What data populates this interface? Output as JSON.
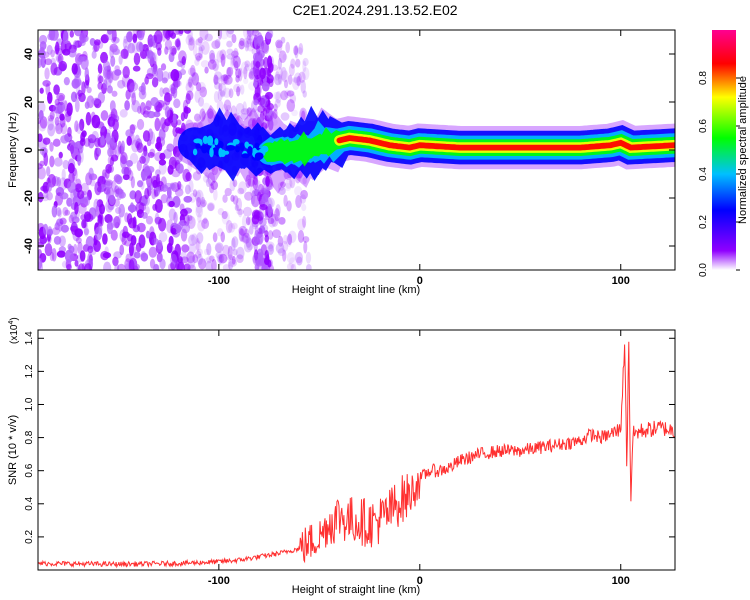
{
  "title": "C2E1.2024.291.13.52.E02",
  "chart_data": [
    {
      "type": "heatmap",
      "title": "C2E1.2024.291.13.52.E02",
      "xlabel": "Height of straight line (km)",
      "ylabel": "Frequency (Hz)",
      "xlim": [
        -190,
        127
      ],
      "ylim": [
        -50,
        50
      ],
      "x_ticks": [
        -100,
        0,
        100
      ],
      "y_ticks": [
        -40,
        -20,
        0,
        20,
        40
      ],
      "colorbar": {
        "label": "Normalized spectral amplitude",
        "range": [
          0.0,
          1.0
        ],
        "ticks": [
          0.0,
          0.2,
          0.4,
          0.6,
          0.8
        ],
        "colormap": "rainbow",
        "colors": [
          "#ffffff",
          "#9000ff",
          "#0000ff",
          "#00c0ff",
          "#00ff00",
          "#ffff00",
          "#ff0000",
          "#ff0090"
        ]
      },
      "ridge": {
        "x": [
          -110,
          -90,
          -75,
          -60,
          -45,
          -35,
          -25,
          -15,
          -5,
          0,
          20,
          50,
          80,
          95,
          100,
          105,
          127
        ],
        "frequency_hz": [
          2,
          1,
          -1,
          0,
          3,
          5,
          4,
          2,
          1,
          2,
          1,
          1,
          1,
          2,
          3,
          1,
          2
        ]
      },
      "grid": false,
      "legend": "colorbar right"
    },
    {
      "type": "line",
      "xlabel": "Height of straight line (km)",
      "ylabel": "SNR (10 * v/v)",
      "scale_label": "(x10",
      "scale_exp": "4",
      "scale_close": ")",
      "xlim": [
        -190,
        127
      ],
      "ylim": [
        0,
        1.45
      ],
      "x_ticks": [
        -100,
        0,
        100
      ],
      "y_ticks": [
        0.2,
        0.4,
        0.6,
        0.8,
        1.0,
        1.2,
        1.4
      ],
      "color": "#ff3030",
      "series": [
        {
          "x": [
            -190,
            -150,
            -120,
            -100,
            -90,
            -80,
            -70,
            -60,
            -50,
            -45,
            -40,
            -35,
            -30,
            -25,
            -20,
            -15,
            -10,
            -5,
            0,
            5,
            10,
            15,
            20,
            30,
            40,
            50,
            60,
            70,
            80,
            85,
            90,
            95,
            100,
            102,
            103,
            104,
            105,
            106,
            110,
            120,
            127
          ],
          "values": [
            0.04,
            0.035,
            0.04,
            0.05,
            0.06,
            0.08,
            0.1,
            0.13,
            0.2,
            0.28,
            0.33,
            0.3,
            0.3,
            0.28,
            0.3,
            0.35,
            0.42,
            0.45,
            0.55,
            0.6,
            0.6,
            0.62,
            0.66,
            0.7,
            0.72,
            0.72,
            0.74,
            0.76,
            0.78,
            0.82,
            0.8,
            0.82,
            0.85,
            1.4,
            0.6,
            1.4,
            0.4,
            0.82,
            0.84,
            0.86,
            0.84
          ]
        }
      ],
      "grid": false
    }
  ]
}
